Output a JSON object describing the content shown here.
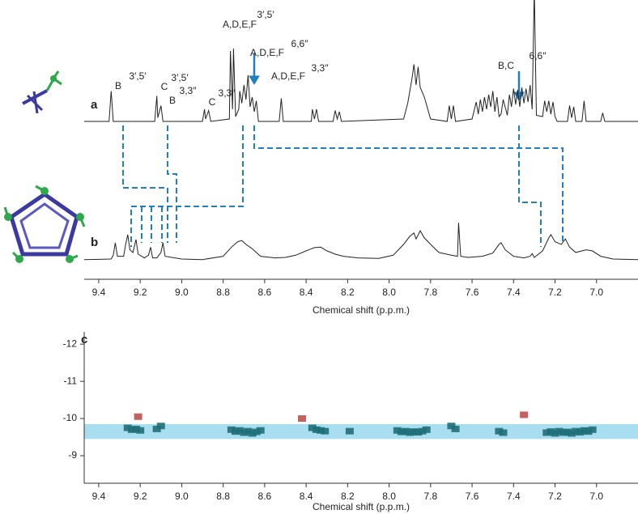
{
  "chart_data": [
    {
      "type": "line",
      "panel": "a",
      "xlim": [
        9.47,
        6.8
      ],
      "ylim": [
        0,
        100
      ],
      "series": [
        {
          "color": "#222222",
          "x": [
            9.47,
            9.35,
            9.34,
            9.33,
            9.13,
            9.12,
            9.115,
            9.1,
            9.09,
            8.9,
            8.89,
            8.885,
            8.87,
            8.86,
            8.77,
            8.765,
            8.755,
            8.75,
            8.74,
            8.725,
            8.72,
            8.71,
            8.7,
            8.69,
            8.68,
            8.67,
            8.66,
            8.65,
            8.64,
            8.63,
            8.53,
            8.52,
            8.51,
            8.375,
            8.37,
            8.36,
            8.35,
            8.34,
            8.27,
            8.26,
            8.25,
            8.24,
            8.23,
            7.93,
            7.91,
            7.89,
            7.88,
            7.87,
            7.86,
            7.85,
            7.83,
            7.8,
            7.72,
            7.71,
            7.7,
            7.69,
            7.68,
            7.6,
            7.58,
            7.57,
            7.56,
            7.55,
            7.54,
            7.53,
            7.52,
            7.51,
            7.5,
            7.49,
            7.48,
            7.47,
            7.46,
            7.45,
            7.43,
            7.42,
            7.41,
            7.4,
            7.39,
            7.38,
            7.37,
            7.36,
            7.35,
            7.34,
            7.33,
            7.32,
            7.31,
            7.3,
            7.29,
            7.26,
            7.25,
            7.24,
            7.23,
            7.22,
            7.21,
            7.2,
            7.19,
            7.14,
            7.13,
            7.12,
            7.11,
            7.1,
            7.07,
            7.06,
            7.05,
            6.98,
            6.97,
            6.96,
            6.8
          ],
          "values": [
            0,
            0,
            25,
            0,
            0,
            21,
            3,
            13,
            0,
            0,
            10,
            2,
            9,
            0,
            2,
            58,
            10,
            60,
            4,
            10,
            25,
            15,
            30,
            18,
            38,
            12,
            20,
            8,
            17,
            0,
            0,
            19,
            0,
            0,
            10,
            2,
            10,
            0,
            0,
            9,
            2,
            8,
            0,
            2,
            15,
            35,
            47,
            30,
            45,
            28,
            20,
            2,
            0,
            13,
            2,
            13,
            0,
            2,
            16,
            6,
            18,
            8,
            20,
            10,
            22,
            12,
            25,
            8,
            20,
            4,
            6,
            18,
            5,
            22,
            12,
            27,
            14,
            26,
            12,
            28,
            15,
            27,
            16,
            30,
            10,
            110,
            5,
            4,
            17,
            8,
            17,
            6,
            16,
            4,
            0,
            0,
            13,
            3,
            12,
            0,
            0,
            17,
            0,
            0,
            7,
            0,
            0
          ]
        }
      ],
      "annotations": [
        "B",
        "3′,5′",
        "C",
        "3′,5′",
        "B",
        "3,3″",
        "C",
        "3,3″",
        "A,D,E,F",
        "3′,5′",
        "A,D,E,F",
        "6,6″",
        "A,D,E,F",
        "3,3″",
        "B,C",
        "6,6″"
      ]
    },
    {
      "type": "line",
      "panel": "b",
      "xlim": [
        9.47,
        6.8
      ],
      "ylim": [
        0,
        100
      ],
      "xlabel": "Chemical shift (p.p.m.)",
      "xticks": [
        9.4,
        9.2,
        {
          "value": 9,
          "label": "9.0"
        },
        8.8,
        8.6,
        8.4,
        8.2,
        {
          "value": 8,
          "label": "8.0"
        },
        7.8,
        7.6,
        7.4,
        7.2,
        {
          "value": 7,
          "label": "7.0"
        }
      ],
      "series": [
        {
          "color": "#222222",
          "x": [
            9.47,
            9.34,
            9.33,
            9.32,
            9.31,
            9.28,
            9.27,
            9.26,
            9.25,
            9.235,
            9.22,
            9.21,
            9.18,
            9.16,
            9.15,
            9.14,
            9.12,
            9.1,
            9.09,
            9.08,
            9.0,
            8.9,
            8.8,
            8.76,
            8.73,
            8.71,
            8.69,
            8.66,
            8.62,
            8.55,
            8.5,
            8.45,
            8.4,
            8.36,
            8.33,
            8.3,
            8.26,
            8.22,
            8.15,
            8.05,
            7.98,
            7.93,
            7.9,
            7.88,
            7.87,
            7.85,
            7.83,
            7.8,
            7.76,
            7.7,
            7.67,
            7.665,
            7.655,
            7.62,
            7.55,
            7.5,
            7.47,
            7.46,
            7.44,
            7.4,
            7.35,
            7.32,
            7.31,
            7.3,
            7.26,
            7.23,
            7.22,
            7.2,
            7.17,
            7.15,
            7.13,
            7.1,
            7.05,
            7.02,
            6.98,
            6.92,
            6.8
          ],
          "values": [
            2,
            3,
            10,
            33,
            8,
            8,
            30,
            48,
            20,
            15,
            39,
            12,
            5,
            10,
            25,
            5,
            5,
            15,
            33,
            8,
            3,
            2,
            8,
            25,
            35,
            37,
            30,
            22,
            8,
            5,
            6,
            10,
            18,
            24,
            25,
            18,
            12,
            8,
            5,
            4,
            10,
            30,
            45,
            51,
            40,
            55,
            42,
            30,
            15,
            10,
            8,
            70,
            8,
            6,
            8,
            14,
            30,
            33,
            20,
            8,
            5,
            8,
            13,
            6,
            18,
            42,
            48,
            35,
            30,
            40,
            25,
            15,
            20,
            18,
            8,
            3,
            2
          ]
        }
      ]
    },
    {
      "type": "scatter",
      "panel": "c",
      "xlim": [
        9.47,
        6.8
      ],
      "ylim": [
        -8.26,
        -12.33
      ],
      "xlabel": "Chemical shift (p.p.m.)",
      "xticks": [
        9.4,
        9.2,
        {
          "value": 9,
          "label": "9.0"
        },
        8.8,
        8.6,
        8.4,
        8.2,
        {
          "value": 8,
          "label": "8.0"
        },
        7.8,
        7.6,
        7.4,
        7.2,
        {
          "value": 7,
          "label": "7.0"
        }
      ],
      "yticks": [
        -12,
        -11,
        -10,
        -9
      ],
      "highlight": {
        "range": [
          -9.85,
          -9.45
        ],
        "color": "#a9ddf0"
      },
      "series": [
        {
          "color": "#1f6f78",
          "x": [
            9.26,
            9.24,
            9.22,
            9.2,
            9.12,
            9.1,
            8.76,
            8.74,
            8.72,
            8.7,
            8.68,
            8.66,
            8.64,
            8.62,
            8.37,
            8.35,
            8.33,
            8.31,
            8.19,
            7.96,
            7.94,
            7.92,
            7.9,
            7.88,
            7.86,
            7.84,
            7.82,
            7.7,
            7.68,
            7.47,
            7.45,
            7.24,
            7.22,
            7.2,
            7.18,
            7.16,
            7.14,
            7.12,
            7.1,
            7.08,
            7.06,
            7.04,
            7.02
          ],
          "values": [
            -9.75,
            -9.7,
            -9.72,
            -9.68,
            -9.72,
            -9.8,
            -9.7,
            -9.65,
            -9.68,
            -9.62,
            -9.66,
            -9.6,
            -9.64,
            -9.68,
            -9.75,
            -9.7,
            -9.68,
            -9.66,
            -9.66,
            -9.68,
            -9.64,
            -9.66,
            -9.62,
            -9.65,
            -9.63,
            -9.66,
            -9.7,
            -9.8,
            -9.72,
            -9.66,
            -9.62,
            -9.62,
            -9.65,
            -9.6,
            -9.66,
            -9.62,
            -9.64,
            -9.6,
            -9.66,
            -9.63,
            -9.68,
            -9.65,
            -9.7
          ]
        },
        {
          "color": "#c0504d",
          "x": [
            9.21,
            8.42,
            7.35
          ],
          "values": [
            -10.05,
            -10.0,
            -10.1
          ]
        }
      ]
    }
  ]
}
